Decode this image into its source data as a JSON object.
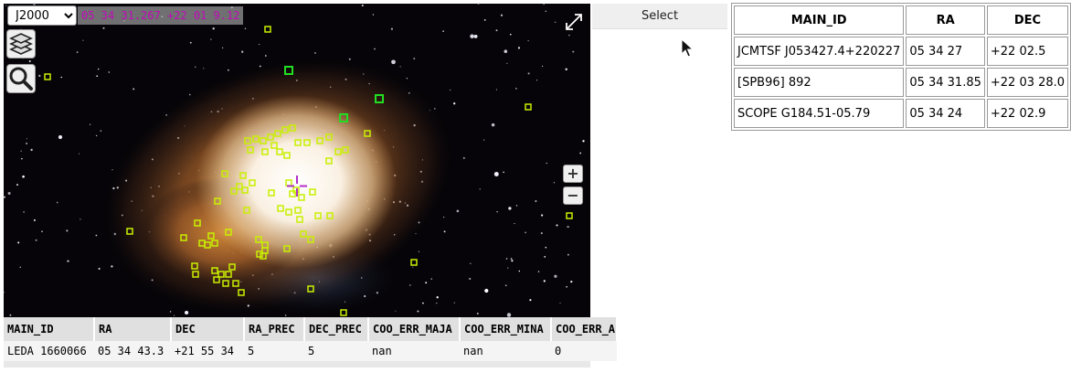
{
  "viewer": {
    "frame": "J2000",
    "frame_options": [
      "J2000"
    ],
    "coordinates": "05 34 31.267 +22 01 9.12",
    "zoom_in_label": "+",
    "zoom_out_label": "−",
    "icons": {
      "layers": "layers-icon",
      "search": "magnifier-icon",
      "fullscreen": "expand-icon",
      "reticle": "crosshair-icon"
    },
    "colors": {
      "marker": "#c8f000",
      "selected_marker": "#22dd22",
      "reticle": "#b030c8",
      "coordinates_text": "#c00ab8"
    }
  },
  "catalog": {
    "columns": [
      "MAIN_ID",
      "RA",
      "DEC",
      "RA_PREC",
      "DEC_PREC",
      "COO_ERR_MAJA",
      "COO_ERR_MINA",
      "COO_ERR_A"
    ],
    "row": [
      "LEDA 1660066",
      "05 34 43.3",
      "+21 55 34",
      "5",
      "5",
      "nan",
      "nan",
      "0"
    ]
  },
  "select_button": "Select",
  "results": {
    "headers": [
      "MAIN_ID",
      "RA",
      "DEC"
    ],
    "rows": [
      {
        "main_id": "JCMTSF J053427.4+220227",
        "ra": "05 34 27",
        "dec": "+22 02.5"
      },
      {
        "main_id": "[SPB96] 892",
        "ra": "05 34 31.85",
        "dec": "+22 03 28.0"
      },
      {
        "main_id": "SCOPE G184.51-05.79",
        "ra": "05 34 24",
        "dec": "+22 02.9"
      }
    ]
  }
}
